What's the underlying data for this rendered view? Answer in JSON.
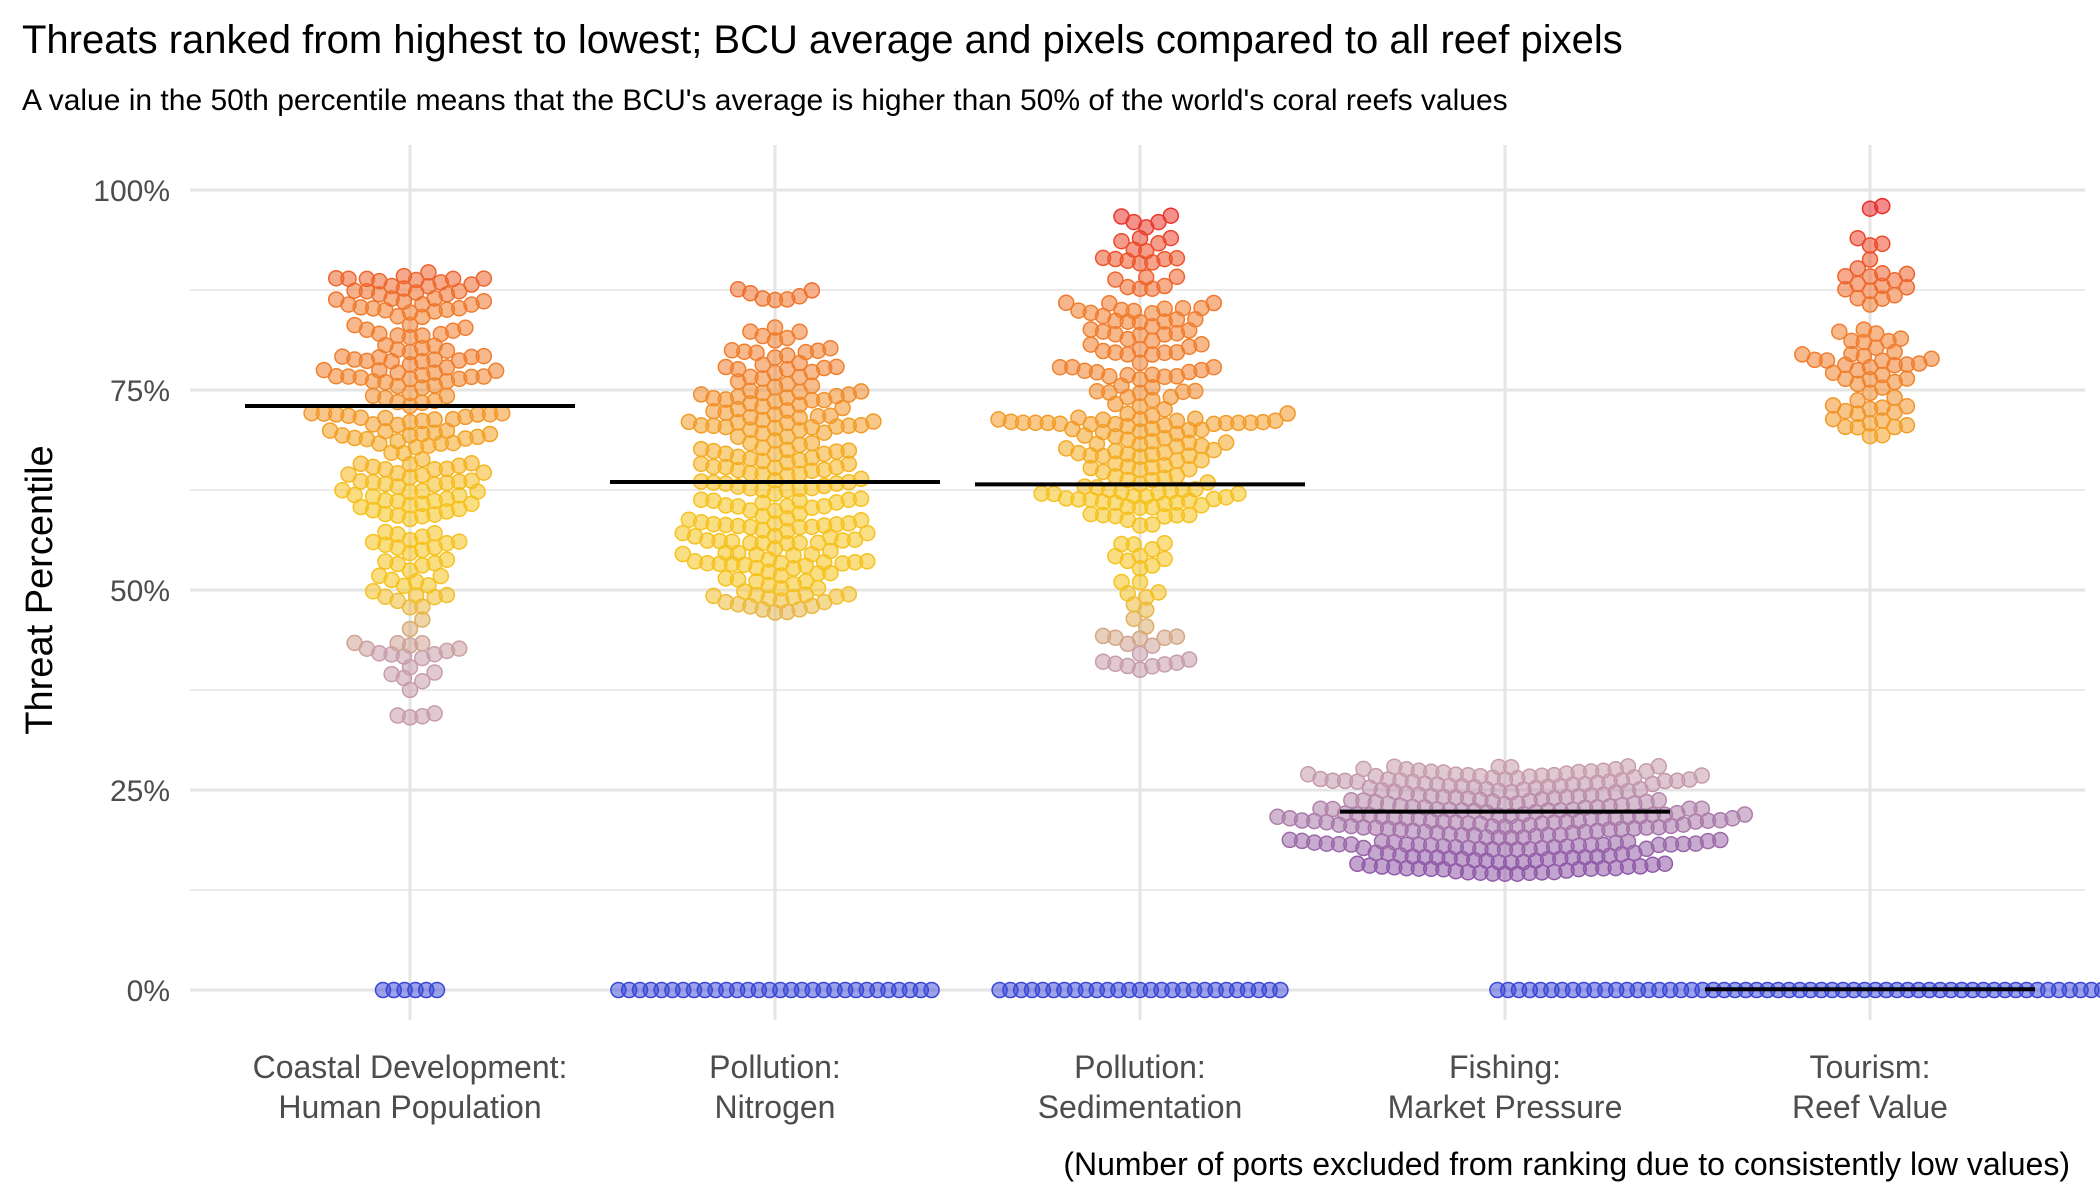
{
  "chart_data": {
    "type": "beeswarm",
    "title": "Threats ranked from highest to lowest; BCU average and pixels compared to all reef pixels",
    "subtitle": "A value in the 50th percentile means that the BCU's average is higher than 50% of the world's coral reefs values",
    "ylabel": "Threat Percentile",
    "xlabel": "",
    "caption": "(Number of ports excluded from ranking due to consistently low values)",
    "ylim": [
      0,
      100
    ],
    "y_ticks": [
      0,
      25,
      50,
      75,
      100
    ],
    "y_tick_labels": [
      "0%",
      "25%",
      "50%",
      "75%",
      "100%"
    ],
    "grid": true,
    "categories": [
      {
        "line1": "Coastal Development:",
        "line2": "Human Population",
        "average": 73,
        "point_count": 230,
        "zero_count": 6,
        "min": 34,
        "max": 90,
        "bands": [
          [
            34,
            40,
            0.04
          ],
          [
            40,
            50,
            0.1
          ],
          [
            50,
            60,
            0.14
          ],
          [
            60,
            68,
            0.18
          ],
          [
            68,
            80,
            0.32
          ],
          [
            80,
            90,
            0.22
          ]
        ]
      },
      {
        "line1": "Pollution:",
        "line2": "Nitrogen",
        "average": 63.5,
        "point_count": 230,
        "zero_count": 30,
        "min": 47,
        "max": 89,
        "bands": [
          [
            47,
            53,
            0.14
          ],
          [
            53,
            60,
            0.24
          ],
          [
            60,
            68,
            0.24
          ],
          [
            68,
            78,
            0.28
          ],
          [
            78,
            83,
            0.07
          ],
          [
            86,
            89,
            0.03
          ]
        ]
      },
      {
        "line1": "Pollution:",
        "line2": "Sedimentation",
        "average": 63.2,
        "point_count": 230,
        "zero_count": 27,
        "min": 40,
        "max": 97,
        "bands": [
          [
            40,
            50,
            0.1
          ],
          [
            50,
            56,
            0.05
          ],
          [
            58,
            72,
            0.45
          ],
          [
            72,
            80,
            0.15
          ],
          [
            80,
            90,
            0.17
          ],
          [
            90,
            97,
            0.08
          ]
        ]
      },
      {
        "line1": "Fishing:",
        "line2": "Market Pressure",
        "average": 22.3,
        "point_count": 260,
        "zero_count": 0,
        "min": 14.5,
        "max": 28,
        "bands": [
          [
            14.5,
            19,
            0.32
          ],
          [
            19,
            25,
            0.46
          ],
          [
            25,
            28,
            0.22
          ]
        ]
      },
      {
        "line1": "Tourism:",
        "line2": "Reef Value",
        "average": 0.1,
        "point_count": 70,
        "zero_count": 70,
        "min": 69,
        "max": 98,
        "bands": [
          [
            69,
            76,
            0.3
          ],
          [
            76,
            83,
            0.4
          ],
          [
            83,
            90,
            0.2
          ],
          [
            90,
            98,
            0.1
          ]
        ]
      }
    ]
  },
  "colors": {
    "high": "#e8202a",
    "upper": "#f07e2e",
    "mid": "#f6c21f",
    "low": "#c79dab",
    "bottom": "#8f59a8",
    "zero": "#3a47d6",
    "grid": "#e5e5e5",
    "average_line": "#000000"
  }
}
